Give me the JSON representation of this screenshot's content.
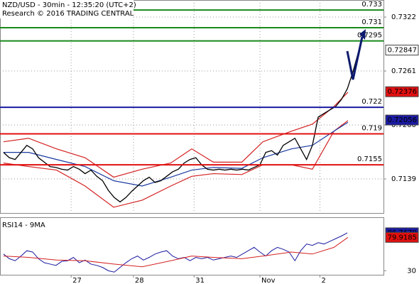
{
  "chart_data": {
    "type": "financial",
    "title": "NZD/USD - 30min - 12:35:20 (UTC+2)",
    "subtitle": "Research © 2016 TRADING CENTRAL",
    "xlim": [
      -0.6,
      65.2
    ],
    "xticks": [
      {
        "value": 11.6,
        "label": "27"
      },
      {
        "value": 22.3,
        "label": "28"
      },
      {
        "value": 32.7,
        "label": "31"
      },
      {
        "value": 44,
        "label": "Nov"
      },
      {
        "value": 54.3,
        "label": "2"
      }
    ],
    "ylim": [
      0.71005,
      0.73413
    ],
    "yticks": [
      0.7322,
      0.7261,
      {
        "value": 0.72,
        "label": "0.7200"
      },
      0.7139
    ],
    "grid": true,
    "price": {
      "color": "#000000",
      "values": [
        0.7169,
        0.7163,
        0.7161,
        0.7169,
        0.7177,
        0.7173,
        0.7163,
        0.7158,
        0.7153,
        0.7152,
        0.715,
        0.7149,
        0.7153,
        0.715,
        0.7145,
        0.7149,
        0.7142,
        0.7137,
        0.7126,
        0.7118,
        0.7113,
        0.7118,
        0.7125,
        0.7131,
        0.7137,
        0.7141,
        0.7135,
        0.7137,
        0.7142,
        0.7147,
        0.715,
        0.7157,
        0.7161,
        0.7163,
        0.7155,
        0.715,
        0.7149,
        0.715,
        0.7149,
        0.715,
        0.7149,
        0.715,
        0.7149,
        0.7152,
        0.7155,
        0.7169,
        0.7171,
        0.7166,
        0.7177,
        0.7181,
        0.7185,
        0.7173,
        0.7161,
        0.7177,
        0.7209,
        0.7213,
        0.7217,
        0.7221,
        0.7229,
        0.7241,
        0.7261,
        0.7285
      ]
    },
    "band_x": [
      0,
      4.3,
      9.1,
      14,
      18.9,
      23.8,
      28.7,
      32.3,
      36,
      40.9,
      44.5,
      49.4,
      53,
      56.7,
      59.1
    ],
    "upper_band": {
      "color": "#d42020",
      "values": [
        0.7181,
        0.7185,
        0.7173,
        0.7163,
        0.7141,
        0.715,
        0.7157,
        0.7173,
        0.7158,
        0.7158,
        0.7181,
        0.7193,
        0.7201,
        0.7221,
        0.7237
      ]
    },
    "lower_band": {
      "color": "#d42020",
      "values": [
        0.7157,
        0.7153,
        0.7149,
        0.7131,
        0.7107,
        0.7115,
        0.7131,
        0.7142,
        0.7145,
        0.7144,
        0.7155,
        0.7155,
        0.715,
        0.7193,
        0.7205
      ]
    },
    "moving_average": {
      "color": "#1a3aa0",
      "values": [
        0.7169,
        0.7169,
        0.7161,
        0.7153,
        0.7137,
        0.7131,
        0.7141,
        0.7149,
        0.7152,
        0.7151,
        0.7163,
        0.7173,
        0.7177,
        0.7193,
        0.7203
      ]
    },
    "levels": [
      {
        "value": 0.733,
        "color": "#1a8a1a"
      },
      {
        "value": 0.731,
        "color": "#1a8a1a"
      },
      {
        "value": 0.7295,
        "color": "#1a8a1a"
      },
      {
        "value": 0.722,
        "color": "#1a1aa0"
      },
      {
        "value": 0.719,
        "color": "#e01010"
      },
      {
        "value": 0.7155,
        "color": "#e01010"
      }
    ],
    "tags": [
      {
        "value": 0.72847,
        "color": "#ffffff",
        "text_color": "#000000"
      },
      {
        "value": 0.72376,
        "color": "#e01010",
        "text_color": "#000000"
      },
      {
        "value": 0.72056,
        "color": "#1a1aa0",
        "text_color": "#ffffff"
      }
    ],
    "rsi": {
      "title": "RSI14 - 9MA",
      "ylim": [
        24,
        110
      ],
      "yticks": [
        30
      ],
      "line": {
        "color": "#1a1aa0",
        "values": [
          55,
          48,
          45,
          52,
          60,
          58,
          48,
          42,
          40,
          38,
          44,
          45,
          50,
          42,
          46,
          40,
          38,
          35,
          30,
          28,
          35,
          42,
          48,
          52,
          46,
          50,
          55,
          58,
          60,
          52,
          48,
          50,
          45,
          50,
          48,
          50,
          46,
          48,
          50,
          52,
          50,
          55,
          60,
          65,
          58,
          52,
          60,
          65,
          62,
          58,
          45,
          60,
          70,
          68,
          72,
          70,
          74,
          78,
          82,
          86.7679
        ]
      },
      "ma": {
        "color": "#d42020",
        "values": [
          52,
          50,
          46,
          45,
          40,
          36,
          45,
          52,
          50,
          48,
          52,
          58,
          55,
          65,
          79.9185
        ]
      },
      "tags": [
        {
          "value": 86.7679,
          "color": "#1a1aa0",
          "text_color": "#ffffff"
        },
        {
          "value": 79.9185,
          "color": "#e01010",
          "text_color": "#000000"
        }
      ]
    }
  }
}
